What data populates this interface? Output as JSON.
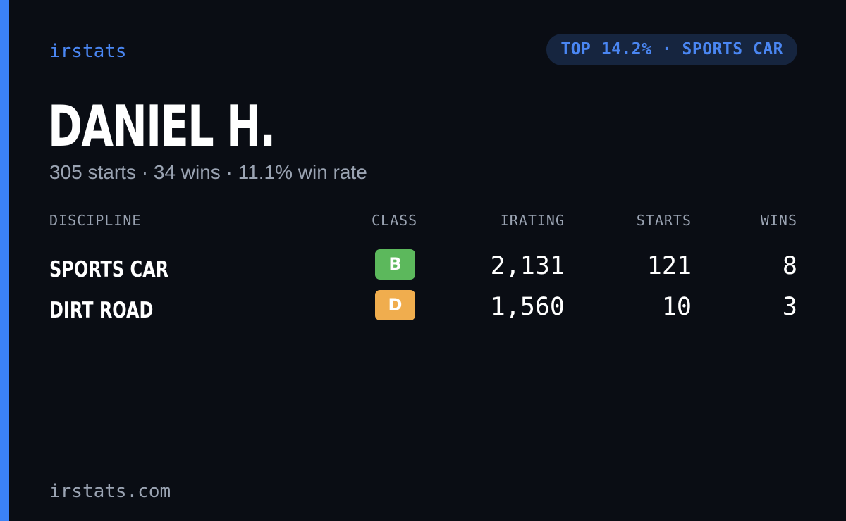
{
  "brand": "irstats",
  "rank_pill": "TOP 14.2% · SPORTS CAR",
  "driver": {
    "name": "DANIEL H.",
    "summary": "305 starts · 34 wins · 11.1% win rate"
  },
  "table": {
    "headers": {
      "discipline": "DISCIPLINE",
      "class": "CLASS",
      "irating": "IRATING",
      "starts": "STARTS",
      "wins": "WINS"
    },
    "rows": [
      {
        "discipline": "SPORTS CAR",
        "class": "B",
        "class_color": "#5cb85c",
        "irating": "2,131",
        "starts": "121",
        "wins": "8"
      },
      {
        "discipline": "DIRT ROAD",
        "class": "D",
        "class_color": "#f0ad4e",
        "irating": "1,560",
        "starts": "10",
        "wins": "3"
      }
    ]
  },
  "footer": "irstats.com",
  "colors": {
    "background": "#0a0d14",
    "accent": "#3b82f6",
    "pill_bg": "#16253f",
    "muted_text": "#9aa3b2"
  }
}
